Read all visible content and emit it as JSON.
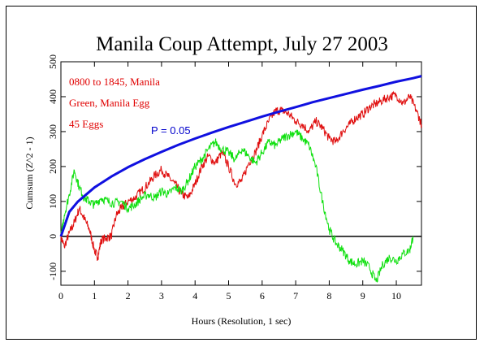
{
  "chart_data": {
    "type": "line",
    "title": "Manila Coup Attempt, July 27 2003",
    "xlabel": "Hours (Resolution, 1 sec)",
    "ylabel": "Cumsum (Z^2 - 1)",
    "xlim": [
      0,
      10.75
    ],
    "ylim": [
      -140,
      500
    ],
    "x_ticks": [
      0,
      1,
      2,
      3,
      4,
      5,
      6,
      7,
      8,
      9,
      10
    ],
    "y_ticks": [
      -100,
      0,
      100,
      200,
      300,
      400,
      500
    ],
    "zero_line": true,
    "annotations": [
      {
        "text": "0800 to 1845, Manila",
        "color": "#e00000"
      },
      {
        "text": "Green, Manila Egg",
        "color": "#e00000"
      },
      {
        "text": "45 Eggs",
        "color": "#e00000"
      },
      {
        "text": "P = 0.05",
        "color": "#0000cc"
      }
    ],
    "series": [
      {
        "color": "#e01010",
        "x": [
          0,
          0.1,
          0.25,
          0.4,
          0.55,
          0.7,
          0.85,
          1.0,
          1.1,
          1.2,
          1.35,
          1.5,
          1.65,
          1.8,
          2.0,
          2.2,
          2.4,
          2.6,
          2.8,
          3.0,
          3.2,
          3.4,
          3.6,
          3.8,
          4.0,
          4.2,
          4.4,
          4.6,
          4.8,
          5.0,
          5.2,
          5.4,
          5.6,
          5.8,
          6.0,
          6.2,
          6.4,
          6.6,
          6.8,
          7.0,
          7.2,
          7.4,
          7.6,
          7.8,
          8.0,
          8.2,
          8.4,
          8.6,
          8.8,
          9.0,
          9.2,
          9.4,
          9.6,
          9.8,
          10.0,
          10.2,
          10.4,
          10.6,
          10.75
        ],
        "y": [
          0,
          -30,
          10,
          40,
          80,
          50,
          20,
          -40,
          -60,
          -10,
          -5,
          0,
          60,
          80,
          100,
          110,
          130,
          150,
          175,
          190,
          170,
          150,
          120,
          110,
          150,
          200,
          230,
          210,
          240,
          200,
          150,
          160,
          210,
          240,
          290,
          330,
          360,
          360,
          350,
          330,
          320,
          300,
          330,
          310,
          280,
          270,
          300,
          320,
          340,
          350,
          370,
          380,
          390,
          400,
          405,
          380,
          400,
          360,
          320
        ]
      },
      {
        "color": "#10e010",
        "x": [
          0,
          0.1,
          0.25,
          0.4,
          0.55,
          0.7,
          0.85,
          1.0,
          1.2,
          1.4,
          1.6,
          1.8,
          2.0,
          2.2,
          2.4,
          2.6,
          2.8,
          3.0,
          3.2,
          3.4,
          3.6,
          3.8,
          4.0,
          4.2,
          4.4,
          4.6,
          4.8,
          5.0,
          5.2,
          5.4,
          5.6,
          5.8,
          6.0,
          6.2,
          6.4,
          6.6,
          6.8,
          7.0,
          7.2,
          7.4,
          7.6,
          7.8,
          8.0,
          8.2,
          8.4,
          8.6,
          8.8,
          9.0,
          9.2,
          9.4,
          9.6,
          9.8,
          10.0,
          10.2,
          10.4,
          10.5
        ],
        "y": [
          0,
          60,
          120,
          190,
          140,
          110,
          100,
          90,
          110,
          100,
          95,
          100,
          80,
          90,
          110,
          120,
          110,
          130,
          120,
          140,
          130,
          160,
          200,
          220,
          250,
          270,
          250,
          240,
          220,
          250,
          230,
          210,
          240,
          270,
          260,
          280,
          290,
          300,
          280,
          260,
          200,
          100,
          20,
          -20,
          -40,
          -70,
          -80,
          -70,
          -90,
          -130,
          -80,
          -60,
          -70,
          -50,
          -40,
          0
        ]
      },
      {
        "color": "#1010e0",
        "name": "P = 0.05",
        "formula": "sqrt",
        "x": [
          0,
          0.25,
          0.5,
          1,
          1.5,
          2,
          2.5,
          3,
          3.5,
          4,
          4.5,
          5,
          5.5,
          6,
          6.5,
          7,
          7.5,
          8,
          8.5,
          9,
          9.5,
          10,
          10.5,
          10.75
        ],
        "y": [
          0,
          70,
          99,
          140,
          171,
          198,
          221,
          242,
          262,
          280,
          297,
          313,
          328,
          343,
          357,
          370,
          384,
          396,
          408,
          420,
          431,
          443,
          453,
          459
        ]
      }
    ]
  }
}
